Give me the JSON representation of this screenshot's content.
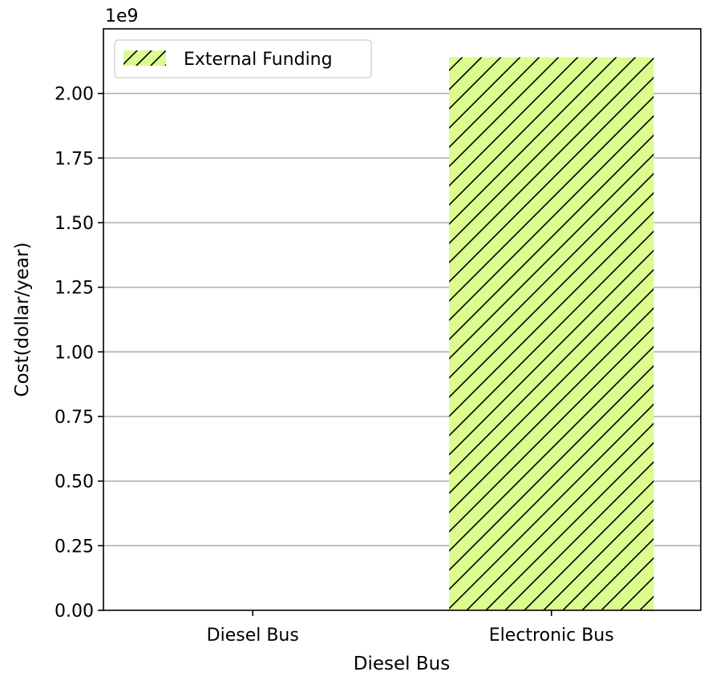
{
  "chart_data": {
    "type": "bar",
    "categories": [
      "Diesel Bus",
      "Electronic Bus"
    ],
    "series": [
      {
        "name": "External Funding",
        "values": [
          0,
          2140000000
        ],
        "color": "#dbfc8e",
        "hatch": "/"
      }
    ],
    "title": "",
    "xlabel": "Diesel Bus",
    "ylabel": "Cost(dollar/year)",
    "ylim": [
      0,
      2250000000
    ],
    "yticks": [
      0,
      250000000,
      500000000,
      750000000,
      1000000000,
      1250000000,
      1500000000,
      1750000000,
      2000000000
    ],
    "ytick_labels": [
      "0.00",
      "0.25",
      "0.50",
      "0.75",
      "1.00",
      "1.25",
      "1.50",
      "1.75",
      "2.00"
    ],
    "offset_label": "1e9",
    "grid": "y",
    "legend": "upper-left"
  }
}
